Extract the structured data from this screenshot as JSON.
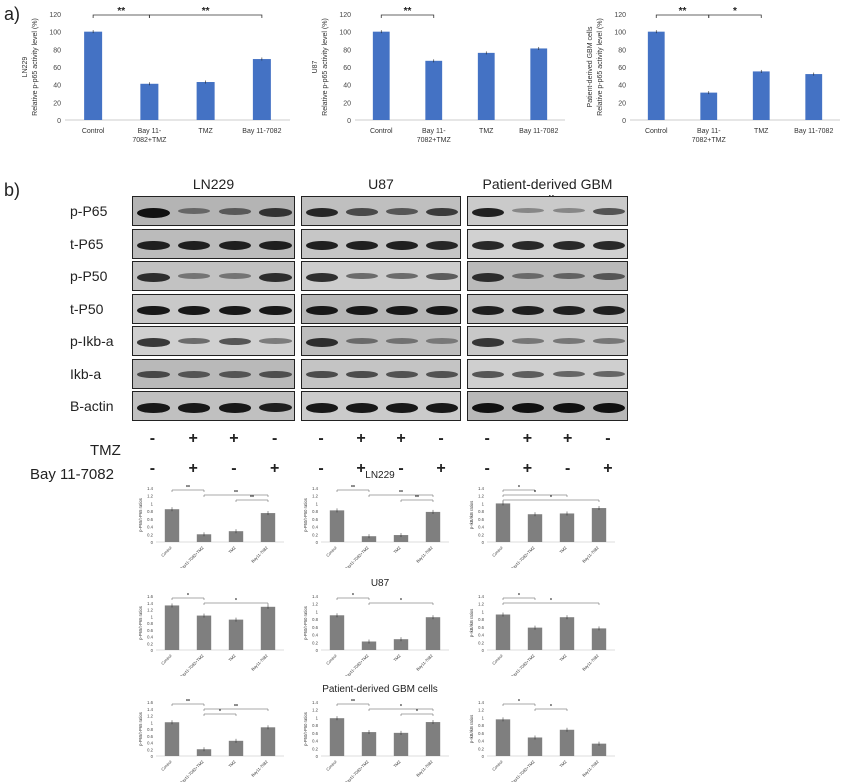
{
  "panel_a_label": "a)",
  "panel_b_label": "b)",
  "charts_a": [
    {
      "type": "bar",
      "ylabel_top": "LN229",
      "ylabel": "Relative p-p65 activity level (%)",
      "categories": [
        "Control",
        "Bay 11-\n7082+TMZ",
        "TMZ",
        "Bay 11-7082"
      ],
      "values": [
        100,
        41,
        43,
        69
      ],
      "ylim": [
        0,
        120
      ],
      "yticks": [
        "0",
        "20",
        "40",
        "60",
        "80",
        "100",
        "120"
      ],
      "sig": [
        {
          "from": 0,
          "to": 1,
          "label": "**"
        },
        {
          "from": 1,
          "to": 3,
          "label": "**"
        }
      ]
    },
    {
      "type": "bar",
      "ylabel_top": "U87",
      "ylabel": "Relative p-p65 activity level (%)",
      "categories": [
        "Control",
        "Bay 11-\n7082+TMZ",
        "TMZ",
        "Bay 11-7082"
      ],
      "values": [
        100,
        67,
        76,
        81
      ],
      "ylim": [
        0,
        120
      ],
      "yticks": [
        "0",
        "20",
        "40",
        "60",
        "80",
        "100",
        "120"
      ],
      "sig": [
        {
          "from": 0,
          "to": 1,
          "label": "**"
        }
      ]
    },
    {
      "type": "bar",
      "ylabel_top": "Patient-derived GBM cells",
      "ylabel": "Relative p-p65 activity level (%)",
      "categories": [
        "Control",
        "Bay 11-\n7082+TMZ",
        "TMZ",
        "Bay 11-7082"
      ],
      "values": [
        100,
        31,
        55,
        52
      ],
      "ylim": [
        0,
        120
      ],
      "yticks": [
        "0",
        "20",
        "40",
        "60",
        "80",
        "100",
        "120"
      ],
      "sig": [
        {
          "from": 0,
          "to": 1,
          "label": "**"
        },
        {
          "from": 1,
          "to": 2,
          "label": "*"
        }
      ]
    }
  ],
  "western_blot": {
    "titles": [
      "LN229",
      "U87",
      "Patient-derived GBM cells"
    ],
    "rows": [
      "p-P65",
      "t-P65",
      "p-P50",
      "t-P50",
      "p-Ikb-a",
      "Ikb-a",
      "B-actin"
    ],
    "intensity": [
      [
        [
          1.0,
          0.35,
          0.45,
          0.75
        ],
        [
          0.85,
          0.6,
          0.5,
          0.7
        ],
        [
          0.9,
          0.2,
          0.2,
          0.55
        ]
      ],
      [
        [
          0.9,
          0.9,
          0.9,
          0.9
        ],
        [
          0.9,
          0.9,
          0.9,
          0.85
        ],
        [
          0.85,
          0.85,
          0.85,
          0.85
        ]
      ],
      [
        [
          0.8,
          0.3,
          0.3,
          0.8
        ],
        [
          0.8,
          0.4,
          0.4,
          0.5
        ],
        [
          0.8,
          0.35,
          0.4,
          0.5
        ]
      ],
      [
        [
          0.95,
          0.95,
          0.95,
          0.95
        ],
        [
          0.95,
          0.95,
          0.95,
          0.95
        ],
        [
          0.9,
          0.9,
          0.9,
          0.9
        ]
      ],
      [
        [
          0.75,
          0.4,
          0.55,
          0.3
        ],
        [
          0.8,
          0.35,
          0.3,
          0.25
        ],
        [
          0.75,
          0.3,
          0.3,
          0.3
        ]
      ],
      [
        [
          0.6,
          0.5,
          0.5,
          0.55
        ],
        [
          0.6,
          0.6,
          0.55,
          0.55
        ],
        [
          0.55,
          0.5,
          0.45,
          0.45
        ]
      ],
      [
        [
          0.95,
          0.95,
          0.95,
          0.9
        ],
        [
          0.95,
          0.95,
          0.95,
          0.95
        ],
        [
          1.0,
          1.0,
          1.0,
          1.0
        ]
      ]
    ],
    "treatments": [
      {
        "label": "TMZ",
        "signs": [
          "-",
          "+",
          "+",
          "-"
        ]
      },
      {
        "label": "Bay 11-7082",
        "signs": [
          "-",
          "+",
          "-",
          "+"
        ]
      }
    ]
  },
  "quant_titles": [
    "LN229",
    "U87",
    "Patient-derived GBM cells"
  ],
  "quant_categories": [
    "Control",
    "Bay11-7082+TMZ",
    "TMZ",
    "Bay11-7082"
  ],
  "quant_charts": [
    {
      "ylabel": "p-P65/t-P65 ratios",
      "values": [
        0.85,
        0.2,
        0.28,
        0.75
      ],
      "yticks": [
        "0",
        "0.2",
        "0.4",
        "0.6",
        "0.8",
        "1",
        "1.2",
        "1.4"
      ],
      "ymax": 1.4,
      "sig": [
        {
          "from": 0,
          "to": 1,
          "label": "**"
        },
        {
          "from": 1,
          "to": 3,
          "label": "**"
        },
        {
          "from": 2,
          "to": 3,
          "label": "**"
        }
      ]
    },
    {
      "ylabel": "p-P50/t-P50 ratios",
      "values": [
        0.82,
        0.15,
        0.18,
        0.78
      ],
      "yticks": [
        "0",
        "0.2",
        "0.4",
        "0.6",
        "0.8",
        "1",
        "1.2",
        "1.4"
      ],
      "ymax": 1.4,
      "sig": [
        {
          "from": 0,
          "to": 1,
          "label": "**"
        },
        {
          "from": 1,
          "to": 3,
          "label": "**"
        },
        {
          "from": 2,
          "to": 3,
          "label": "**"
        }
      ]
    },
    {
      "ylabel": "p-IkB/IkB ratios",
      "values": [
        1.0,
        0.72,
        0.74,
        0.88
      ],
      "yticks": [
        "0",
        "0.2",
        "0.4",
        "0.6",
        "0.8",
        "1",
        "1.2",
        "1.4"
      ],
      "ymax": 1.4,
      "sig": [
        {
          "from": 0,
          "to": 1,
          "label": "*"
        },
        {
          "from": 0,
          "to": 2,
          "label": "*"
        },
        {
          "from": 0,
          "to": 3,
          "label": "*"
        }
      ]
    },
    {
      "ylabel": "p-P65/t-P65 ratios",
      "values": [
        1.32,
        1.02,
        0.9,
        1.28
      ],
      "yticks": [
        "0",
        "0.2",
        "0.4",
        "0.6",
        "0.8",
        "1",
        "1.2",
        "1.4",
        "1.6"
      ],
      "ymax": 1.6,
      "sig": [
        {
          "from": 0,
          "to": 1,
          "label": "*"
        },
        {
          "from": 1,
          "to": 3,
          "label": "*"
        }
      ]
    },
    {
      "ylabel": "p-P50/t-P50 ratios",
      "values": [
        0.9,
        0.22,
        0.28,
        0.85
      ],
      "yticks": [
        "0",
        "0.2",
        "0.4",
        "0.6",
        "0.8",
        "1",
        "1.2",
        "1.4"
      ],
      "ymax": 1.4,
      "sig": [
        {
          "from": 0,
          "to": 1,
          "label": "*"
        },
        {
          "from": 1,
          "to": 3,
          "label": "*"
        }
      ]
    },
    {
      "ylabel": "p-IkB/IkB ratios",
      "values": [
        0.92,
        0.58,
        0.85,
        0.56
      ],
      "yticks": [
        "0",
        "0.2",
        "0.4",
        "0.6",
        "0.8",
        "1",
        "1.2",
        "1.4"
      ],
      "ymax": 1.4,
      "sig": [
        {
          "from": 0,
          "to": 1,
          "label": "*"
        },
        {
          "from": 0,
          "to": 3,
          "label": "*"
        }
      ]
    },
    {
      "ylabel": "p-P65/t-P65 ratios",
      "values": [
        1.0,
        0.2,
        0.45,
        0.85
      ],
      "yticks": [
        "0",
        "0.2",
        "0.4",
        "0.6",
        "0.8",
        "1",
        "1.2",
        "1.4",
        "1.6"
      ],
      "ymax": 1.6,
      "sig": [
        {
          "from": 0,
          "to": 1,
          "label": "**"
        },
        {
          "from": 1,
          "to": 3,
          "label": "**"
        },
        {
          "from": 1,
          "to": 2,
          "label": "*"
        }
      ]
    },
    {
      "ylabel": "p-P50/t-P50 ratios",
      "values": [
        0.98,
        0.62,
        0.6,
        0.88
      ],
      "yticks": [
        "0",
        "0.2",
        "0.4",
        "0.6",
        "0.8",
        "1",
        "1.2",
        "1.4"
      ],
      "ymax": 1.4,
      "sig": [
        {
          "from": 0,
          "to": 1,
          "label": "**"
        },
        {
          "from": 1,
          "to": 3,
          "label": "*"
        },
        {
          "from": 2,
          "to": 3,
          "label": "*"
        }
      ]
    },
    {
      "ylabel": "p-IkB/IkB ratios",
      "values": [
        0.95,
        0.48,
        0.68,
        0.32
      ],
      "yticks": [
        "0",
        "0.2",
        "0.4",
        "0.6",
        "0.8",
        "1",
        "1.2",
        "1.4"
      ],
      "ymax": 1.4,
      "sig": [
        {
          "from": 0,
          "to": 1,
          "label": "*"
        },
        {
          "from": 1,
          "to": 2,
          "label": "*"
        }
      ]
    }
  ],
  "colors": {
    "bar_blue": "#4472c4",
    "bar_grey": "#7f7f7f"
  }
}
